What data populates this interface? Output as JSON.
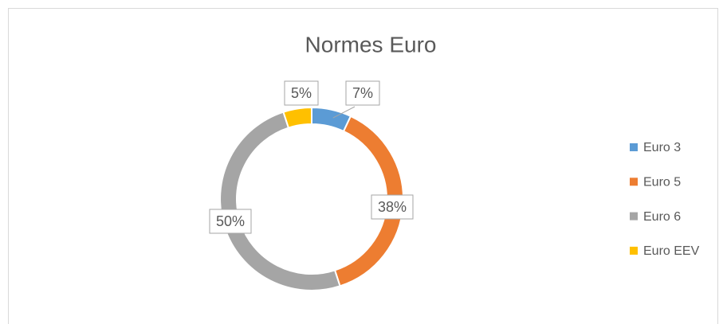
{
  "chart_data": {
    "type": "donut",
    "title": "Normes Euro",
    "categories": [
      "Euro 3",
      "Euro 5",
      "Euro 6",
      "Euro EEV"
    ],
    "values": [
      7,
      38,
      50,
      5
    ],
    "value_labels": [
      "7%",
      "38%",
      "50%",
      "5%"
    ],
    "colors": [
      "#5b9bd5",
      "#ed7d31",
      "#a5a5a5",
      "#ffc000"
    ],
    "legend": "right"
  }
}
